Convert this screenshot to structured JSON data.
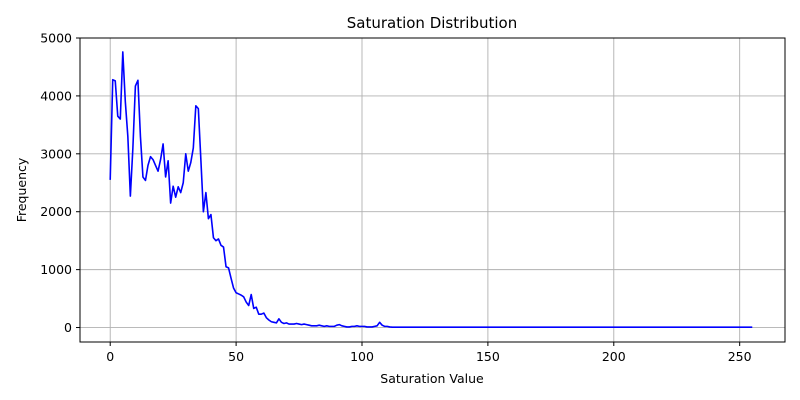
{
  "chart_data": {
    "type": "line",
    "title": "Saturation Distribution",
    "xlabel": "Saturation Value",
    "ylabel": "Frequency",
    "xlim": [
      -12,
      268
    ],
    "ylim": [
      -250,
      5000
    ],
    "xticks": [
      0,
      50,
      100,
      150,
      200,
      250
    ],
    "yticks": [
      0,
      1000,
      2000,
      3000,
      4000,
      5000
    ],
    "grid": true,
    "series": [
      {
        "color": "#0000ff",
        "x": [
          0,
          1,
          2,
          3,
          4,
          5,
          6,
          7,
          8,
          9,
          10,
          11,
          12,
          13,
          14,
          15,
          16,
          17,
          18,
          19,
          20,
          21,
          22,
          23,
          24,
          25,
          26,
          27,
          28,
          29,
          30,
          31,
          32,
          33,
          34,
          35,
          36,
          37,
          38,
          39,
          40,
          41,
          42,
          43,
          44,
          45,
          46,
          47,
          48,
          49,
          50,
          51,
          52,
          53,
          54,
          55,
          56,
          57,
          58,
          59,
          60,
          61,
          62,
          63,
          64,
          65,
          66,
          67,
          68,
          69,
          70,
          71,
          72,
          73,
          74,
          75,
          76,
          77,
          78,
          79,
          80,
          81,
          82,
          83,
          84,
          85,
          86,
          87,
          88,
          89,
          90,
          91,
          92,
          93,
          94,
          95,
          96,
          97,
          98,
          99,
          100,
          101,
          102,
          103,
          104,
          105,
          106,
          107,
          108,
          109,
          110,
          111,
          112,
          113,
          114,
          115,
          116,
          117,
          118,
          119,
          120,
          130,
          140,
          150,
          160,
          170,
          180,
          190,
          200,
          210,
          220,
          230,
          240,
          250,
          255
        ],
        "y": [
          2550,
          4280,
          4260,
          3650,
          3600,
          4760,
          3900,
          3300,
          2270,
          3100,
          4170,
          4270,
          3300,
          2600,
          2540,
          2800,
          2950,
          2900,
          2800,
          2700,
          2900,
          3170,
          2600,
          2880,
          2150,
          2440,
          2250,
          2430,
          2330,
          2500,
          3000,
          2700,
          2850,
          3100,
          3830,
          3780,
          2900,
          2000,
          2330,
          1880,
          1950,
          1550,
          1500,
          1530,
          1420,
          1390,
          1050,
          1030,
          850,
          680,
          600,
          580,
          560,
          530,
          440,
          380,
          570,
          330,
          350,
          230,
          230,
          250,
          170,
          130,
          100,
          90,
          80,
          150,
          90,
          70,
          80,
          60,
          60,
          60,
          70,
          60,
          50,
          60,
          50,
          40,
          30,
          30,
          30,
          40,
          30,
          20,
          30,
          20,
          20,
          20,
          40,
          50,
          30,
          20,
          10,
          10,
          20,
          20,
          30,
          20,
          20,
          20,
          10,
          10,
          10,
          20,
          30,
          90,
          40,
          20,
          20,
          10,
          5,
          5,
          5,
          5,
          5,
          5,
          5,
          5,
          5,
          5,
          5,
          5,
          5,
          5,
          5,
          5,
          5,
          5,
          5,
          5,
          5,
          5,
          5
        ]
      }
    ]
  }
}
